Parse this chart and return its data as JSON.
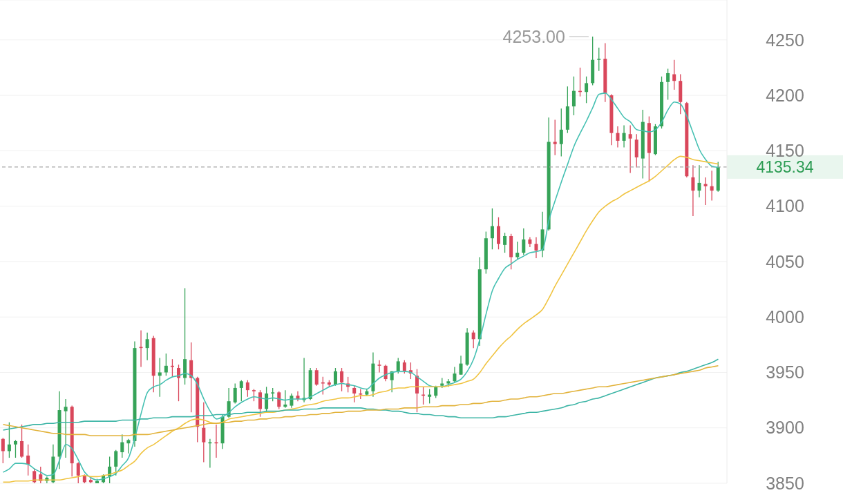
{
  "chart_data": {
    "type": "candlestick",
    "categories": [
      null,
      null,
      null,
      null,
      null,
      null,
      null,
      null,
      null,
      null,
      null,
      null,
      null,
      null,
      null,
      null,
      null,
      null,
      null,
      null,
      null,
      null,
      null,
      null,
      null,
      null,
      null,
      null,
      null,
      null,
      null,
      null,
      null,
      null,
      null,
      null,
      null,
      null,
      null,
      null,
      null,
      null,
      null,
      null,
      null,
      null,
      null,
      null,
      null,
      null,
      null,
      null,
      null,
      null,
      null,
      null,
      null,
      null,
      null,
      null,
      null,
      null,
      null,
      null,
      null,
      null,
      null,
      null,
      null,
      null,
      null,
      null,
      null,
      null,
      null,
      null,
      null,
      null,
      null,
      null,
      null,
      null,
      null,
      null,
      null,
      null,
      null,
      null,
      null,
      null,
      null,
      null,
      null,
      null,
      null,
      null,
      null,
      null,
      null,
      null,
      null,
      null,
      null,
      null,
      null,
      null,
      null,
      null,
      null,
      null,
      null,
      null,
      null,
      null,
      null
    ],
    "ohlc": [
      [
        3890,
        3891,
        3868,
        3879
      ],
      [
        3879,
        3905,
        3873,
        3885
      ],
      [
        3885,
        3889,
        3873,
        3888
      ],
      [
        3888,
        3903,
        3873,
        3874
      ],
      [
        3875,
        3885,
        3857,
        3867
      ],
      [
        3861,
        3863,
        3850,
        3851
      ],
      [
        3858,
        3865,
        3850,
        3852
      ],
      [
        3852,
        3856,
        3850,
        3855
      ],
      [
        3851,
        3885,
        3850,
        3874
      ],
      [
        3874,
        3933,
        3863,
        3916
      ],
      [
        3915,
        3926,
        3873,
        3919
      ],
      [
        3919,
        3920,
        3856,
        3868
      ],
      [
        3868,
        3869,
        3850,
        3857
      ],
      [
        3857,
        3858,
        3850,
        3851
      ],
      [
        3853,
        3856,
        3850,
        3851
      ],
      [
        3850,
        3854,
        3850,
        3852
      ],
      [
        3851,
        3858,
        3850,
        3857
      ],
      [
        3856,
        3874,
        3850,
        3865
      ],
      [
        3865,
        3880,
        3857,
        3879
      ],
      [
        3878,
        3894,
        3873,
        3887
      ],
      [
        3886,
        3890,
        3877,
        3889
      ],
      [
        3888,
        3978,
        3883,
        3972
      ],
      [
        3973,
        3988,
        3955,
        3972
      ],
      [
        3972,
        3986,
        3961,
        3980
      ],
      [
        3981,
        3983,
        3932,
        3947
      ],
      [
        3947,
        3963,
        3928,
        3950
      ],
      [
        3950,
        3967,
        3947,
        3956
      ],
      [
        3956,
        3962,
        3946,
        3955
      ],
      [
        3954,
        3957,
        3924,
        3945
      ],
      [
        3945,
        4026,
        3939,
        3962
      ],
      [
        3961,
        3977,
        3914,
        3945
      ],
      [
        3945,
        3946,
        3887,
        3901
      ],
      [
        3900,
        3923,
        3869,
        3887
      ],
      [
        3886,
        3890,
        3864,
        3887
      ],
      [
        3887,
        3903,
        3873,
        3886
      ],
      [
        3886,
        3912,
        3881,
        3910
      ],
      [
        3910,
        3936,
        3909,
        3924
      ],
      [
        3923,
        3940,
        3922,
        3936
      ],
      [
        3936,
        3943,
        3924,
        3942
      ],
      [
        3941,
        3943,
        3928,
        3934
      ],
      [
        3934,
        3935,
        3924,
        3933
      ],
      [
        3932,
        3934,
        3910,
        3917
      ],
      [
        3917,
        3937,
        3914,
        3931
      ],
      [
        3931,
        3936,
        3924,
        3932
      ],
      [
        3932,
        3933,
        3917,
        3919
      ],
      [
        3919,
        3934,
        3918,
        3921
      ],
      [
        3920,
        3931,
        3918,
        3929
      ],
      [
        3929,
        3933,
        3924,
        3926
      ],
      [
        3925,
        3963,
        3923,
        3927
      ],
      [
        3926,
        3954,
        3925,
        3952
      ],
      [
        3952,
        3954,
        3938,
        3939
      ],
      [
        3941,
        3946,
        3930,
        3940
      ],
      [
        3941,
        3943,
        3937,
        3939
      ],
      [
        3939,
        3954,
        3938,
        3951
      ],
      [
        3951,
        3954,
        3933,
        3941
      ],
      [
        3940,
        3946,
        3932,
        3937
      ],
      [
        3936,
        3938,
        3923,
        3931
      ],
      [
        3931,
        3935,
        3926,
        3930
      ],
      [
        3930,
        3935,
        3929,
        3933
      ],
      [
        3933,
        3968,
        3928,
        3958
      ],
      [
        3957,
        3961,
        3950,
        3956
      ],
      [
        3956,
        3957,
        3942,
        3944
      ],
      [
        3943,
        3951,
        3932,
        3951
      ],
      [
        3951,
        3963,
        3949,
        3960
      ],
      [
        3959,
        3961,
        3949,
        3951
      ],
      [
        3952,
        3959,
        3944,
        3949
      ],
      [
        3947,
        3953,
        3914,
        3931
      ],
      [
        3930,
        3937,
        3921,
        3929
      ],
      [
        3928,
        3935,
        3922,
        3930
      ],
      [
        3929,
        3938,
        3927,
        3937
      ],
      [
        3938,
        3945,
        3936,
        3940
      ],
      [
        3940,
        3944,
        3937,
        3942
      ],
      [
        3942,
        3955,
        3941,
        3949
      ],
      [
        3948,
        3965,
        3948,
        3958
      ],
      [
        3957,
        3990,
        3956,
        3986
      ],
      [
        3986,
        3988,
        3972,
        3980
      ],
      [
        3980,
        4054,
        3974,
        4043
      ],
      [
        4043,
        4077,
        4039,
        4071
      ],
      [
        4071,
        4098,
        4061,
        4082
      ],
      [
        4082,
        4090,
        4061,
        4066
      ],
      [
        4065,
        4076,
        4058,
        4073
      ],
      [
        4073,
        4075,
        4043,
        4054
      ],
      [
        4054,
        4068,
        4052,
        4058
      ],
      [
        4058,
        4080,
        4056,
        4070
      ],
      [
        4070,
        4072,
        4063,
        4066
      ],
      [
        4066,
        4072,
        4053,
        4060
      ],
      [
        4060,
        4095,
        4054,
        4079
      ],
      [
        4079,
        4180,
        4078,
        4158
      ],
      [
        4158,
        4178,
        4146,
        4156
      ],
      [
        4156,
        4188,
        4145,
        4169
      ],
      [
        4169,
        4208,
        4166,
        4190
      ],
      [
        4190,
        4217,
        4182,
        4204
      ],
      [
        4204,
        4225,
        4199,
        4203
      ],
      [
        4203,
        4217,
        4193,
        4211
      ],
      [
        4211,
        4253,
        4209,
        4232
      ],
      [
        4232,
        4243,
        4222,
        4233
      ],
      [
        4233,
        4247,
        4194,
        4202
      ],
      [
        4200,
        4201,
        4155,
        4166
      ],
      [
        4166,
        4172,
        4153,
        4159
      ],
      [
        4159,
        4173,
        4153,
        4166
      ],
      [
        4165,
        4173,
        4130,
        4161
      ],
      [
        4160,
        4165,
        4135,
        4144
      ],
      [
        4143,
        4187,
        4125,
        4176
      ],
      [
        4175,
        4181,
        4122,
        4148
      ],
      [
        4147,
        4174,
        4146,
        4172
      ],
      [
        4172,
        4217,
        4170,
        4212
      ],
      [
        4212,
        4224,
        4196,
        4220
      ],
      [
        4219,
        4232,
        4205,
        4213
      ],
      [
        4213,
        4219,
        4183,
        4194
      ],
      [
        4193,
        4194,
        4126,
        4127
      ],
      [
        4126,
        4137,
        4091,
        4114
      ],
      [
        4114,
        4137,
        4108,
        4121
      ],
      [
        4120,
        4126,
        4101,
        4118
      ],
      [
        4118,
        4132,
        4105,
        4114
      ],
      [
        4114,
        4140,
        4113,
        4135.34
      ]
    ],
    "colors": [
      "#d9475b",
      "#36a358",
      "#36a358",
      "#d9475b",
      "#d9475b",
      "#d9475b",
      "#d9475b",
      "#36a358",
      "#36a358",
      "#36a358",
      "#36a358",
      "#d9475b",
      "#d9475b",
      "#d9475b",
      "#d9475b",
      "#36a358",
      "#36a358",
      "#36a358",
      "#36a358",
      "#36a358",
      "#36a358",
      "#36a358",
      "#d9475b",
      "#36a358",
      "#d9475b",
      "#36a358",
      "#36a358",
      "#d9475b",
      "#d9475b",
      "#36a358",
      "#d9475b",
      "#d9475b",
      "#d9475b",
      "#36a358",
      "#d9475b",
      "#36a358",
      "#36a358",
      "#36a358",
      "#36a358",
      "#d9475b",
      "#d9475b",
      "#d9475b",
      "#36a358",
      "#36a358",
      "#d9475b",
      "#36a358",
      "#36a358",
      "#d9475b",
      "#36a358",
      "#36a358",
      "#d9475b",
      "#d9475b",
      "#d9475b",
      "#36a358",
      "#d9475b",
      "#d9475b",
      "#d9475b",
      "#d9475b",
      "#36a358",
      "#36a358",
      "#d9475b",
      "#d9475b",
      "#36a358",
      "#36a358",
      "#d9475b",
      "#d9475b",
      "#d9475b",
      "#d9475b",
      "#36a358",
      "#36a358",
      "#36a358",
      "#36a358",
      "#36a358",
      "#36a358",
      "#36a358",
      "#d9475b",
      "#36a358",
      "#36a358",
      "#36a358",
      "#d9475b",
      "#36a358",
      "#d9475b",
      "#36a358",
      "#36a358",
      "#d9475b",
      "#d9475b",
      "#36a358",
      "#36a358",
      "#d9475b",
      "#36a358",
      "#36a358",
      "#36a358",
      "#d9475b",
      "#36a358",
      "#36a358",
      "#36a358",
      "#d9475b",
      "#d9475b",
      "#d9475b",
      "#36a358",
      "#d9475b",
      "#d9475b",
      "#36a358",
      "#d9475b",
      "#36a358",
      "#36a358",
      "#36a358",
      "#d9475b",
      "#d9475b",
      "#d9475b",
      "#d9475b",
      "#36a358",
      "#d9475b",
      "#d9475b",
      "#36a358"
    ],
    "series": [
      {
        "type": "line",
        "color": "#45c0b2",
        "values": [
          3860,
          3863,
          3868,
          3868,
          3867,
          3863,
          3860,
          3857,
          3858,
          3871,
          3885,
          3881,
          3871,
          3860,
          3855,
          3853,
          3854,
          3856,
          3859,
          3866,
          3873,
          3891,
          3913,
          3932,
          3937,
          3939,
          3943,
          3946,
          3947,
          3949,
          3947,
          3939,
          3926,
          3915,
          3908,
          3910,
          3914,
          3919,
          3923,
          3926,
          3928,
          3927,
          3926,
          3927,
          3926,
          3925,
          3926,
          3926,
          3926,
          3928,
          3931,
          3934,
          3937,
          3939,
          3940,
          3939,
          3938,
          3936,
          3935,
          3940,
          3945,
          3948,
          3950,
          3951,
          3951,
          3950,
          3946,
          3942,
          3938,
          3937,
          3937,
          3939,
          3941,
          3944,
          3951,
          3962,
          3980,
          4003,
          4024,
          4035,
          4044,
          4048,
          4052,
          4055,
          4058,
          4059,
          4061,
          4087,
          4105,
          4122,
          4138,
          4154,
          4166,
          4177,
          4189,
          4201,
          4202,
          4196,
          4188,
          4180,
          4176,
          4169,
          4168,
          4167,
          4169,
          4176,
          4187,
          4194,
          4192,
          4181,
          4166,
          4151,
          4142,
          4136,
          4135
        ]
      },
      {
        "type": "line",
        "color": "#f0c442",
        "values": [
          3851,
          3851,
          3852,
          3852,
          3852,
          3853,
          3853,
          3853,
          3853,
          3853,
          3854,
          3855,
          3856,
          3857,
          3856,
          3856,
          3857,
          3858,
          3860,
          3862,
          3866,
          3870,
          3877,
          3882,
          3885,
          3889,
          3893,
          3897,
          3900,
          3904,
          3907,
          3908,
          3907,
          3905,
          3904,
          3905,
          3908,
          3909,
          3910,
          3911,
          3912,
          3913,
          3914,
          3914,
          3915,
          3916,
          3917,
          3918,
          3920,
          3921,
          3922,
          3924,
          3925,
          3926,
          3927,
          3927,
          3928,
          3929,
          3929,
          3930,
          3932,
          3933,
          3935,
          3936,
          3936,
          3937,
          3937,
          3937,
          3937,
          3937,
          3937,
          3938,
          3939,
          3940,
          3942,
          3944,
          3950,
          3958,
          3965,
          3972,
          3978,
          3983,
          3989,
          3994,
          3998,
          4002,
          4007,
          4017,
          4028,
          4038,
          4048,
          4058,
          4068,
          4078,
          4087,
          4095,
          4100,
          4104,
          4107,
          4111,
          4114,
          4117,
          4120,
          4123,
          4127,
          4132,
          4137,
          4142,
          4145,
          4144,
          4142,
          4141,
          4140,
          4139,
          4138
        ]
      },
      {
        "type": "line",
        "color": "#3db5a6",
        "values": [
          3898,
          3899,
          3900,
          3901,
          3902,
          3903,
          3903,
          3904,
          3904,
          3905,
          3905,
          3905,
          3905,
          3906,
          3906,
          3906,
          3906,
          3906,
          3906,
          3907,
          3907,
          3907,
          3908,
          3908,
          3909,
          3909,
          3909,
          3910,
          3910,
          3910,
          3910,
          3911,
          3911,
          3911,
          3912,
          3912,
          3912,
          3913,
          3913,
          3914,
          3914,
          3914,
          3915,
          3915,
          3915,
          3916,
          3916,
          3916,
          3917,
          3917,
          3917,
          3918,
          3918,
          3918,
          3918,
          3918,
          3918,
          3918,
          3917,
          3917,
          3916,
          3916,
          3915,
          3915,
          3914,
          3913,
          3913,
          3912,
          3912,
          3911,
          3911,
          3910,
          3910,
          3909,
          3909,
          3909,
          3909,
          3909,
          3909,
          3910,
          3910,
          3911,
          3912,
          3913,
          3914,
          3914,
          3915,
          3916,
          3917,
          3918,
          3920,
          3921,
          3923,
          3924,
          3926,
          3927,
          3929,
          3931,
          3933,
          3935,
          3937,
          3939,
          3941,
          3943,
          3945,
          3946,
          3947,
          3948,
          3950,
          3951,
          3953,
          3955,
          3957,
          3959,
          3962
        ]
      },
      {
        "type": "line",
        "color": "#e2b33c",
        "values": [
          3903,
          3902,
          3901,
          3900,
          3899,
          3898,
          3897,
          3896,
          3895,
          3895,
          3894,
          3894,
          3894,
          3894,
          3893,
          3893,
          3893,
          3893,
          3893,
          3893,
          3893,
          3894,
          3894,
          3894,
          3895,
          3896,
          3897,
          3898,
          3899,
          3900,
          3901,
          3902,
          3903,
          3904,
          3904,
          3905,
          3905,
          3906,
          3906,
          3907,
          3907,
          3908,
          3908,
          3909,
          3909,
          3910,
          3910,
          3911,
          3911,
          3912,
          3912,
          3913,
          3913,
          3914,
          3914,
          3915,
          3915,
          3915,
          3916,
          3916,
          3916,
          3917,
          3917,
          3917,
          3918,
          3918,
          3918,
          3919,
          3919,
          3919,
          3920,
          3920,
          3920,
          3921,
          3921,
          3922,
          3922,
          3923,
          3924,
          3924,
          3925,
          3926,
          3926,
          3927,
          3928,
          3928,
          3929,
          3930,
          3931,
          3931,
          3932,
          3933,
          3934,
          3935,
          3936,
          3937,
          3937,
          3938,
          3939,
          3940,
          3941,
          3942,
          3943,
          3944,
          3945,
          3946,
          3947,
          3948,
          3949,
          3950,
          3951,
          3952,
          3954,
          3955,
          3956
        ]
      }
    ],
    "ylim": [
      3850,
      4286
    ],
    "yticks": [
      3850,
      3900,
      3950,
      4000,
      4050,
      4100,
      4150,
      4200,
      4250
    ],
    "grid": "y",
    "tick_labels": "y",
    "ref_lines": [
      {
        "axis": "y",
        "value": 4135.34,
        "label": "4135.34",
        "color": "#a8a8a8",
        "line_style": "dashed"
      }
    ],
    "annotations": [
      "4253.00"
    ]
  }
}
